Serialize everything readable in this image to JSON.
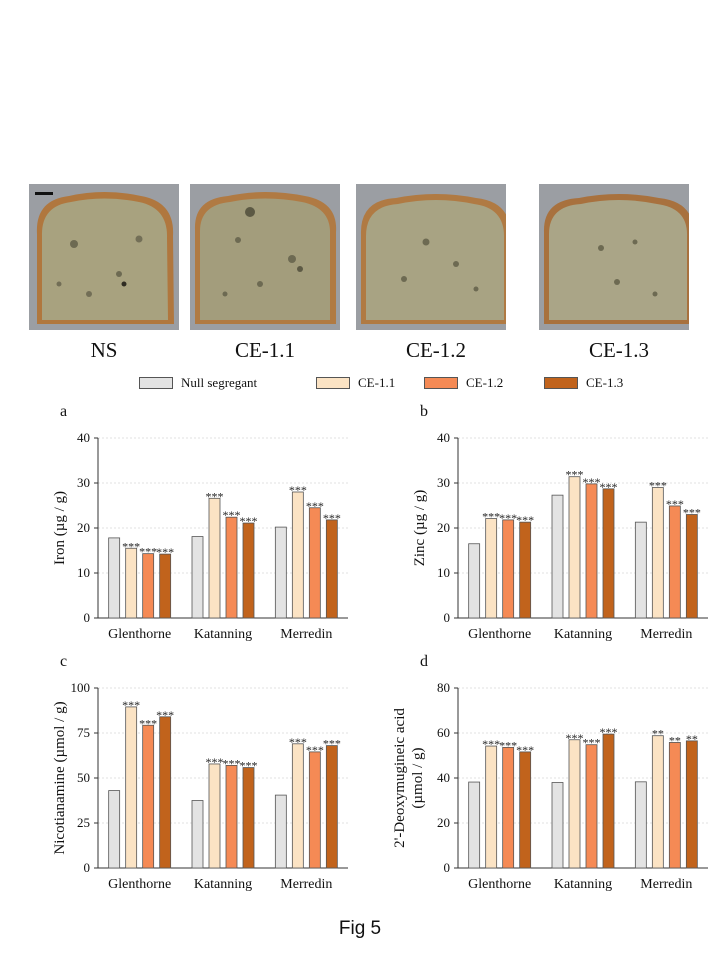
{
  "photos": [
    {
      "label": "NS"
    },
    {
      "label": "CE-1.1"
    },
    {
      "label": "CE-1.2"
    },
    {
      "label": "CE-1.3"
    }
  ],
  "legend": [
    {
      "label": "Null segregant",
      "color": "#e3e3e3"
    },
    {
      "label": "CE-1.1",
      "color": "#fbe3c4"
    },
    {
      "label": "CE-1.2",
      "color": "#f58a55"
    },
    {
      "label": "CE-1.3",
      "color": "#c1631c"
    }
  ],
  "caption": "Fig 5",
  "chart_data": [
    {
      "panel": "a",
      "type": "bar",
      "ylabel": "Iron (µg / g)",
      "ylim": [
        0,
        40
      ],
      "yticks": [
        0,
        10,
        20,
        30,
        40
      ],
      "categories": [
        "Glenthorne",
        "Katanning",
        "Merredin"
      ],
      "series": [
        {
          "name": "Null segregant",
          "values": [
            17.8,
            18.1,
            20.2
          ],
          "sig": [
            "",
            "",
            ""
          ]
        },
        {
          "name": "CE-1.1",
          "values": [
            15.5,
            26.6,
            28.0
          ],
          "sig": [
            "***",
            "***",
            "***"
          ]
        },
        {
          "name": "CE-1.2",
          "values": [
            14.3,
            22.4,
            24.5
          ],
          "sig": [
            "***",
            "***",
            "***"
          ]
        },
        {
          "name": "CE-1.3",
          "values": [
            14.2,
            21.1,
            21.8
          ],
          "sig": [
            "***",
            "***",
            "***"
          ]
        }
      ]
    },
    {
      "panel": "b",
      "type": "bar",
      "ylabel": "Zinc (µg / g)",
      "ylim": [
        0,
        40
      ],
      "yticks": [
        0,
        10,
        20,
        30,
        40
      ],
      "categories": [
        "Glenthorne",
        "Katanning",
        "Merredin"
      ],
      "series": [
        {
          "name": "Null segregant",
          "values": [
            16.5,
            27.3,
            21.3
          ],
          "sig": [
            "",
            "",
            ""
          ]
        },
        {
          "name": "CE-1.1",
          "values": [
            22.1,
            31.4,
            29.0
          ],
          "sig": [
            "***",
            "***",
            "***"
          ]
        },
        {
          "name": "CE-1.2",
          "values": [
            21.8,
            29.8,
            24.9
          ],
          "sig": [
            "***",
            "***",
            "***"
          ]
        },
        {
          "name": "CE-1.3",
          "values": [
            21.3,
            28.7,
            23.0
          ],
          "sig": [
            "***",
            "***",
            "***"
          ]
        }
      ]
    },
    {
      "panel": "c",
      "type": "bar",
      "ylabel": "Nicotianamine (µmol / g)",
      "ylim": [
        0,
        100
      ],
      "yticks": [
        0,
        25,
        50,
        75,
        100
      ],
      "categories": [
        "Glenthorne",
        "Katanning",
        "Merredin"
      ],
      "series": [
        {
          "name": "Null segregant",
          "values": [
            43,
            37.5,
            40.5
          ],
          "sig": [
            "",
            "",
            ""
          ]
        },
        {
          "name": "CE-1.1",
          "values": [
            89.5,
            57.8,
            69.0
          ],
          "sig": [
            "***",
            "***",
            "***"
          ]
        },
        {
          "name": "CE-1.2",
          "values": [
            79.3,
            57.0,
            64.5
          ],
          "sig": [
            "***",
            "***",
            "***"
          ]
        },
        {
          "name": "CE-1.3",
          "values": [
            84.0,
            55.8,
            68.0
          ],
          "sig": [
            "***",
            "***",
            "***"
          ]
        }
      ]
    },
    {
      "panel": "d",
      "type": "bar",
      "ylabel": [
        "2'-Deoxymugineic acid",
        "(µmol / g)"
      ],
      "ylim": [
        0,
        80
      ],
      "yticks": [
        0,
        20,
        40,
        60,
        80
      ],
      "categories": [
        "Glenthorne",
        "Katanning",
        "Merredin"
      ],
      "series": [
        {
          "name": "Null segregant",
          "values": [
            38.2,
            38.0,
            38.3
          ],
          "sig": [
            "",
            "",
            ""
          ]
        },
        {
          "name": "CE-1.1",
          "values": [
            54.2,
            57.0,
            58.8
          ],
          "sig": [
            "***",
            "***",
            "**"
          ]
        },
        {
          "name": "CE-1.2",
          "values": [
            53.6,
            54.8,
            55.8
          ],
          "sig": [
            "***",
            "***",
            "**"
          ]
        },
        {
          "name": "CE-1.3",
          "values": [
            51.6,
            59.5,
            56.5
          ],
          "sig": [
            "***",
            "***",
            "**"
          ]
        }
      ]
    }
  ]
}
